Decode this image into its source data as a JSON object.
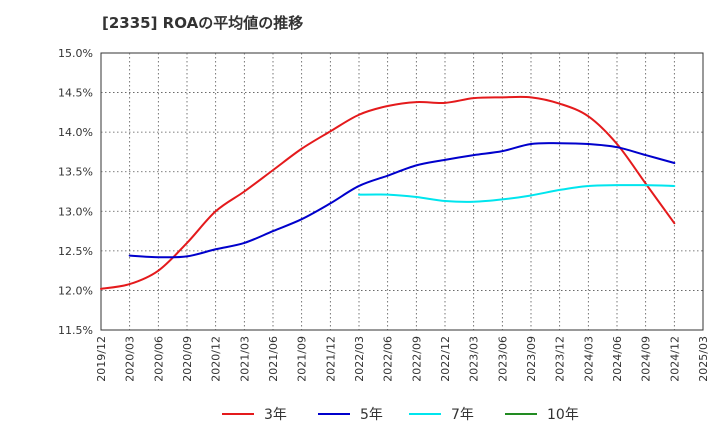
{
  "title": "[2335]  ROAの平均値の推移",
  "chart_data": {
    "type": "line",
    "title": "[2335]  ROAの平均値の推移",
    "xlabel": "",
    "ylabel": "",
    "ylim": [
      11.5,
      15.0
    ],
    "y_ticks": [
      "11.5%",
      "12.0%",
      "12.5%",
      "13.0%",
      "13.5%",
      "14.0%",
      "14.5%",
      "15.0%"
    ],
    "x_ticks": [
      "2019/12",
      "2020/03",
      "2020/06",
      "2020/09",
      "2020/12",
      "2021/03",
      "2021/06",
      "2021/09",
      "2021/12",
      "2022/03",
      "2022/06",
      "2022/09",
      "2022/12",
      "2023/03",
      "2023/06",
      "2023/09",
      "2023/12",
      "2024/03",
      "2024/06",
      "2024/09",
      "2024/12",
      "2025/03"
    ],
    "grid": true,
    "legend_position": "bottom",
    "series": [
      {
        "name": "3年",
        "color": "#e41a1c",
        "points": [
          [
            "2019/12",
            12.02
          ],
          [
            "2020/03",
            12.08
          ],
          [
            "2020/06",
            12.25
          ],
          [
            "2020/09",
            12.6
          ],
          [
            "2020/12",
            13.0
          ],
          [
            "2021/03",
            13.25
          ],
          [
            "2021/06",
            13.52
          ],
          [
            "2021/09",
            13.79
          ],
          [
            "2021/12",
            14.01
          ],
          [
            "2022/03",
            14.22
          ],
          [
            "2022/06",
            14.33
          ],
          [
            "2022/09",
            14.38
          ],
          [
            "2022/12",
            14.37
          ],
          [
            "2023/03",
            14.43
          ],
          [
            "2023/06",
            14.44
          ],
          [
            "2023/09",
            14.44
          ],
          [
            "2023/12",
            14.36
          ],
          [
            "2024/03",
            14.2
          ],
          [
            "2024/06",
            13.85
          ],
          [
            "2024/09",
            13.35
          ],
          [
            "2024/12",
            12.85
          ]
        ]
      },
      {
        "name": "5年",
        "color": "#0000cc",
        "points": [
          [
            "2020/03",
            12.44
          ],
          [
            "2020/06",
            12.42
          ],
          [
            "2020/09",
            12.43
          ],
          [
            "2020/12",
            12.52
          ],
          [
            "2021/03",
            12.6
          ],
          [
            "2021/06",
            12.75
          ],
          [
            "2021/09",
            12.9
          ],
          [
            "2021/12",
            13.1
          ],
          [
            "2022/03",
            13.32
          ],
          [
            "2022/06",
            13.45
          ],
          [
            "2022/09",
            13.58
          ],
          [
            "2022/12",
            13.65
          ],
          [
            "2023/03",
            13.71
          ],
          [
            "2023/06",
            13.76
          ],
          [
            "2023/09",
            13.85
          ],
          [
            "2023/12",
            13.86
          ],
          [
            "2024/03",
            13.85
          ],
          [
            "2024/06",
            13.81
          ],
          [
            "2024/09",
            13.71
          ],
          [
            "2024/12",
            13.61
          ]
        ]
      },
      {
        "name": "7年",
        "color": "#00e5ee",
        "points": [
          [
            "2022/03",
            13.21
          ],
          [
            "2022/06",
            13.21
          ],
          [
            "2022/09",
            13.18
          ],
          [
            "2022/12",
            13.13
          ],
          [
            "2023/03",
            13.12
          ],
          [
            "2023/06",
            13.15
          ],
          [
            "2023/09",
            13.2
          ],
          [
            "2023/12",
            13.27
          ],
          [
            "2024/03",
            13.32
          ],
          [
            "2024/06",
            13.33
          ],
          [
            "2024/09",
            13.33
          ],
          [
            "2024/12",
            13.32
          ]
        ]
      },
      {
        "name": "10年",
        "color": "#228b22",
        "points": []
      }
    ]
  }
}
